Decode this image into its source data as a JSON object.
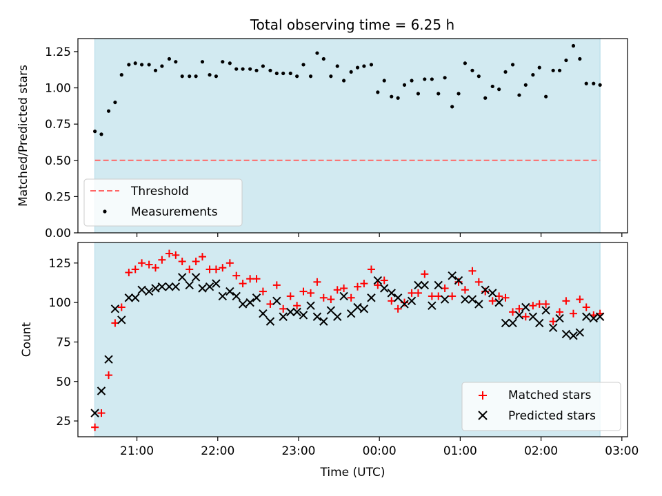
{
  "title": "Total observing time = 6.25 h",
  "colors": {
    "band": "#add8e6",
    "threshold": "#ff6666",
    "matched": "#ff0000",
    "predicted": "#000000",
    "measurement": "#000000"
  },
  "chart_data": [
    {
      "type": "scatter",
      "ylabel": "Matched/Predicted stars",
      "xlabel": "",
      "x_range_hours": [
        20.27,
        27.07
      ],
      "ylim": [
        0.0,
        1.34
      ],
      "observing_window_hours": [
        20.48,
        26.73
      ],
      "yticks": [
        0.0,
        0.25,
        0.5,
        0.75,
        1.0,
        1.25
      ],
      "ytick_labels": [
        "0.00",
        "0.25",
        "0.50",
        "0.75",
        "1.00",
        "1.25"
      ],
      "threshold": 0.5,
      "legend": {
        "position": "lower-left",
        "entries": [
          "Threshold",
          "Measurements"
        ]
      },
      "series": [
        {
          "name": "Measurements",
          "kind": "ratio",
          "x": [
            20.48,
            20.56,
            20.65,
            20.73,
            20.81,
            20.9,
            20.98,
            21.06,
            21.15,
            21.23,
            21.31,
            21.4,
            21.48,
            21.56,
            21.65,
            21.73,
            21.81,
            21.9,
            21.98,
            22.06,
            22.15,
            22.23,
            22.31,
            22.4,
            22.48,
            22.56,
            22.65,
            22.73,
            22.81,
            22.9,
            22.98,
            23.06,
            23.15,
            23.23,
            23.31,
            23.4,
            23.48,
            23.56,
            23.65,
            23.73,
            23.81,
            23.9,
            23.98,
            24.06,
            24.15,
            24.23,
            24.31,
            24.4,
            24.48,
            24.56,
            24.65,
            24.73,
            24.81,
            24.9,
            24.98,
            25.06,
            25.15,
            25.23,
            25.31,
            25.4,
            25.48,
            25.56,
            25.65,
            25.73,
            25.81,
            25.9,
            25.98,
            26.06,
            26.15,
            26.23,
            26.31,
            26.4,
            26.48,
            26.56,
            26.65,
            26.73
          ],
          "y": [
            0.7,
            0.68,
            0.84,
            0.9,
            1.09,
            1.16,
            1.17,
            1.16,
            1.16,
            1.12,
            1.15,
            1.2,
            1.18,
            1.08,
            1.08,
            1.08,
            1.18,
            1.09,
            1.08,
            1.18,
            1.17,
            1.13,
            1.13,
            1.13,
            1.12,
            1.15,
            1.12,
            1.1,
            1.1,
            1.1,
            1.08,
            1.16,
            1.08,
            1.24,
            1.2,
            1.08,
            1.15,
            1.05,
            1.11,
            1.14,
            1.15,
            1.16,
            0.97,
            1.05,
            0.94,
            0.93,
            1.02,
            1.05,
            0.96,
            1.06,
            1.06,
            0.96,
            1.07,
            0.87,
            0.96,
            1.17,
            1.12,
            1.08,
            0.93,
            1.01,
            0.99,
            1.11,
            1.16,
            0.95,
            1.02,
            1.09,
            1.14,
            0.94,
            1.12,
            1.12,
            1.19,
            1.29,
            1.2,
            1.03,
            1.03,
            1.02
          ]
        }
      ]
    },
    {
      "type": "scatter",
      "ylabel": "Count",
      "xlabel": "Time (UTC)",
      "x_range_hours": [
        20.27,
        27.07
      ],
      "ylim": [
        15,
        138
      ],
      "observing_window_hours": [
        20.48,
        26.73
      ],
      "yticks": [
        25,
        50,
        75,
        100,
        125
      ],
      "ytick_labels": [
        "25",
        "50",
        "75",
        "100",
        "125"
      ],
      "xticks_hours": [
        21,
        22,
        23,
        24,
        25,
        26,
        27
      ],
      "xtick_labels": [
        "21:00",
        "22:00",
        "23:00",
        "00:00",
        "01:00",
        "02:00",
        "03:00"
      ],
      "legend": {
        "position": "lower-right",
        "entries": [
          "Matched stars",
          "Predicted stars"
        ]
      },
      "series": [
        {
          "name": "Matched stars",
          "kind": "matched",
          "x": [
            20.48,
            20.56,
            20.65,
            20.73,
            20.81,
            20.9,
            20.98,
            21.06,
            21.15,
            21.23,
            21.31,
            21.4,
            21.48,
            21.56,
            21.65,
            21.73,
            21.81,
            21.9,
            21.98,
            22.06,
            22.15,
            22.23,
            22.31,
            22.4,
            22.48,
            22.56,
            22.65,
            22.73,
            22.81,
            22.9,
            22.98,
            23.06,
            23.15,
            23.23,
            23.31,
            23.4,
            23.48,
            23.56,
            23.65,
            23.73,
            23.81,
            23.9,
            23.98,
            24.06,
            24.15,
            24.23,
            24.31,
            24.4,
            24.48,
            24.56,
            24.65,
            24.73,
            24.81,
            24.9,
            24.98,
            25.06,
            25.15,
            25.23,
            25.31,
            25.4,
            25.48,
            25.56,
            25.65,
            25.73,
            25.81,
            25.9,
            25.98,
            26.06,
            26.15,
            26.23,
            26.31,
            26.4,
            26.48,
            26.56,
            26.65,
            26.73
          ],
          "y": [
            21,
            30,
            54,
            87,
            97,
            119,
            121,
            125,
            124,
            122,
            127,
            131,
            130,
            126,
            121,
            126,
            129,
            121,
            121,
            122,
            125,
            117,
            112,
            115,
            115,
            107,
            99,
            111,
            96,
            104,
            98,
            107,
            106,
            113,
            103,
            102,
            108,
            109,
            103,
            110,
            112,
            121,
            111,
            114,
            101,
            96,
            100,
            106,
            106,
            118,
            104,
            104,
            109,
            104,
            113,
            108,
            120,
            113,
            107,
            101,
            104,
            103,
            94,
            96,
            91,
            98,
            99,
            99,
            88,
            94,
            101,
            93,
            102,
            97,
            92,
            93
          ]
        },
        {
          "name": "Predicted stars",
          "kind": "predicted",
          "x": [
            20.48,
            20.56,
            20.65,
            20.73,
            20.81,
            20.9,
            20.98,
            21.06,
            21.15,
            21.23,
            21.31,
            21.4,
            21.48,
            21.56,
            21.65,
            21.73,
            21.81,
            21.9,
            21.98,
            22.06,
            22.15,
            22.23,
            22.31,
            22.4,
            22.48,
            22.56,
            22.65,
            22.73,
            22.81,
            22.9,
            22.98,
            23.06,
            23.15,
            23.23,
            23.31,
            23.4,
            23.48,
            23.56,
            23.65,
            23.73,
            23.81,
            23.9,
            23.98,
            24.06,
            24.15,
            24.23,
            24.31,
            24.4,
            24.48,
            24.56,
            24.65,
            24.73,
            24.81,
            24.9,
            24.98,
            25.06,
            25.15,
            25.23,
            25.31,
            25.4,
            25.48,
            25.56,
            25.65,
            25.73,
            25.81,
            25.9,
            25.98,
            26.06,
            26.15,
            26.23,
            26.31,
            26.4,
            26.48,
            26.56,
            26.65,
            26.73
          ],
          "y": [
            30,
            44,
            64,
            96,
            89,
            103,
            103,
            108,
            107,
            109,
            110,
            110,
            110,
            116,
            111,
            116,
            109,
            110,
            112,
            104,
            107,
            104,
            99,
            100,
            103,
            93,
            88,
            101,
            91,
            94,
            94,
            92,
            98,
            91,
            88,
            95,
            91,
            104,
            93,
            97,
            96,
            103,
            114,
            109,
            106,
            103,
            99,
            101,
            111,
            111,
            98,
            111,
            102,
            117,
            114,
            102,
            102,
            99,
            108,
            106,
            100,
            87,
            87,
            92,
            97,
            91,
            87,
            95,
            84,
            90,
            80,
            79,
            81,
            91,
            90,
            91
          ]
        }
      ]
    }
  ]
}
